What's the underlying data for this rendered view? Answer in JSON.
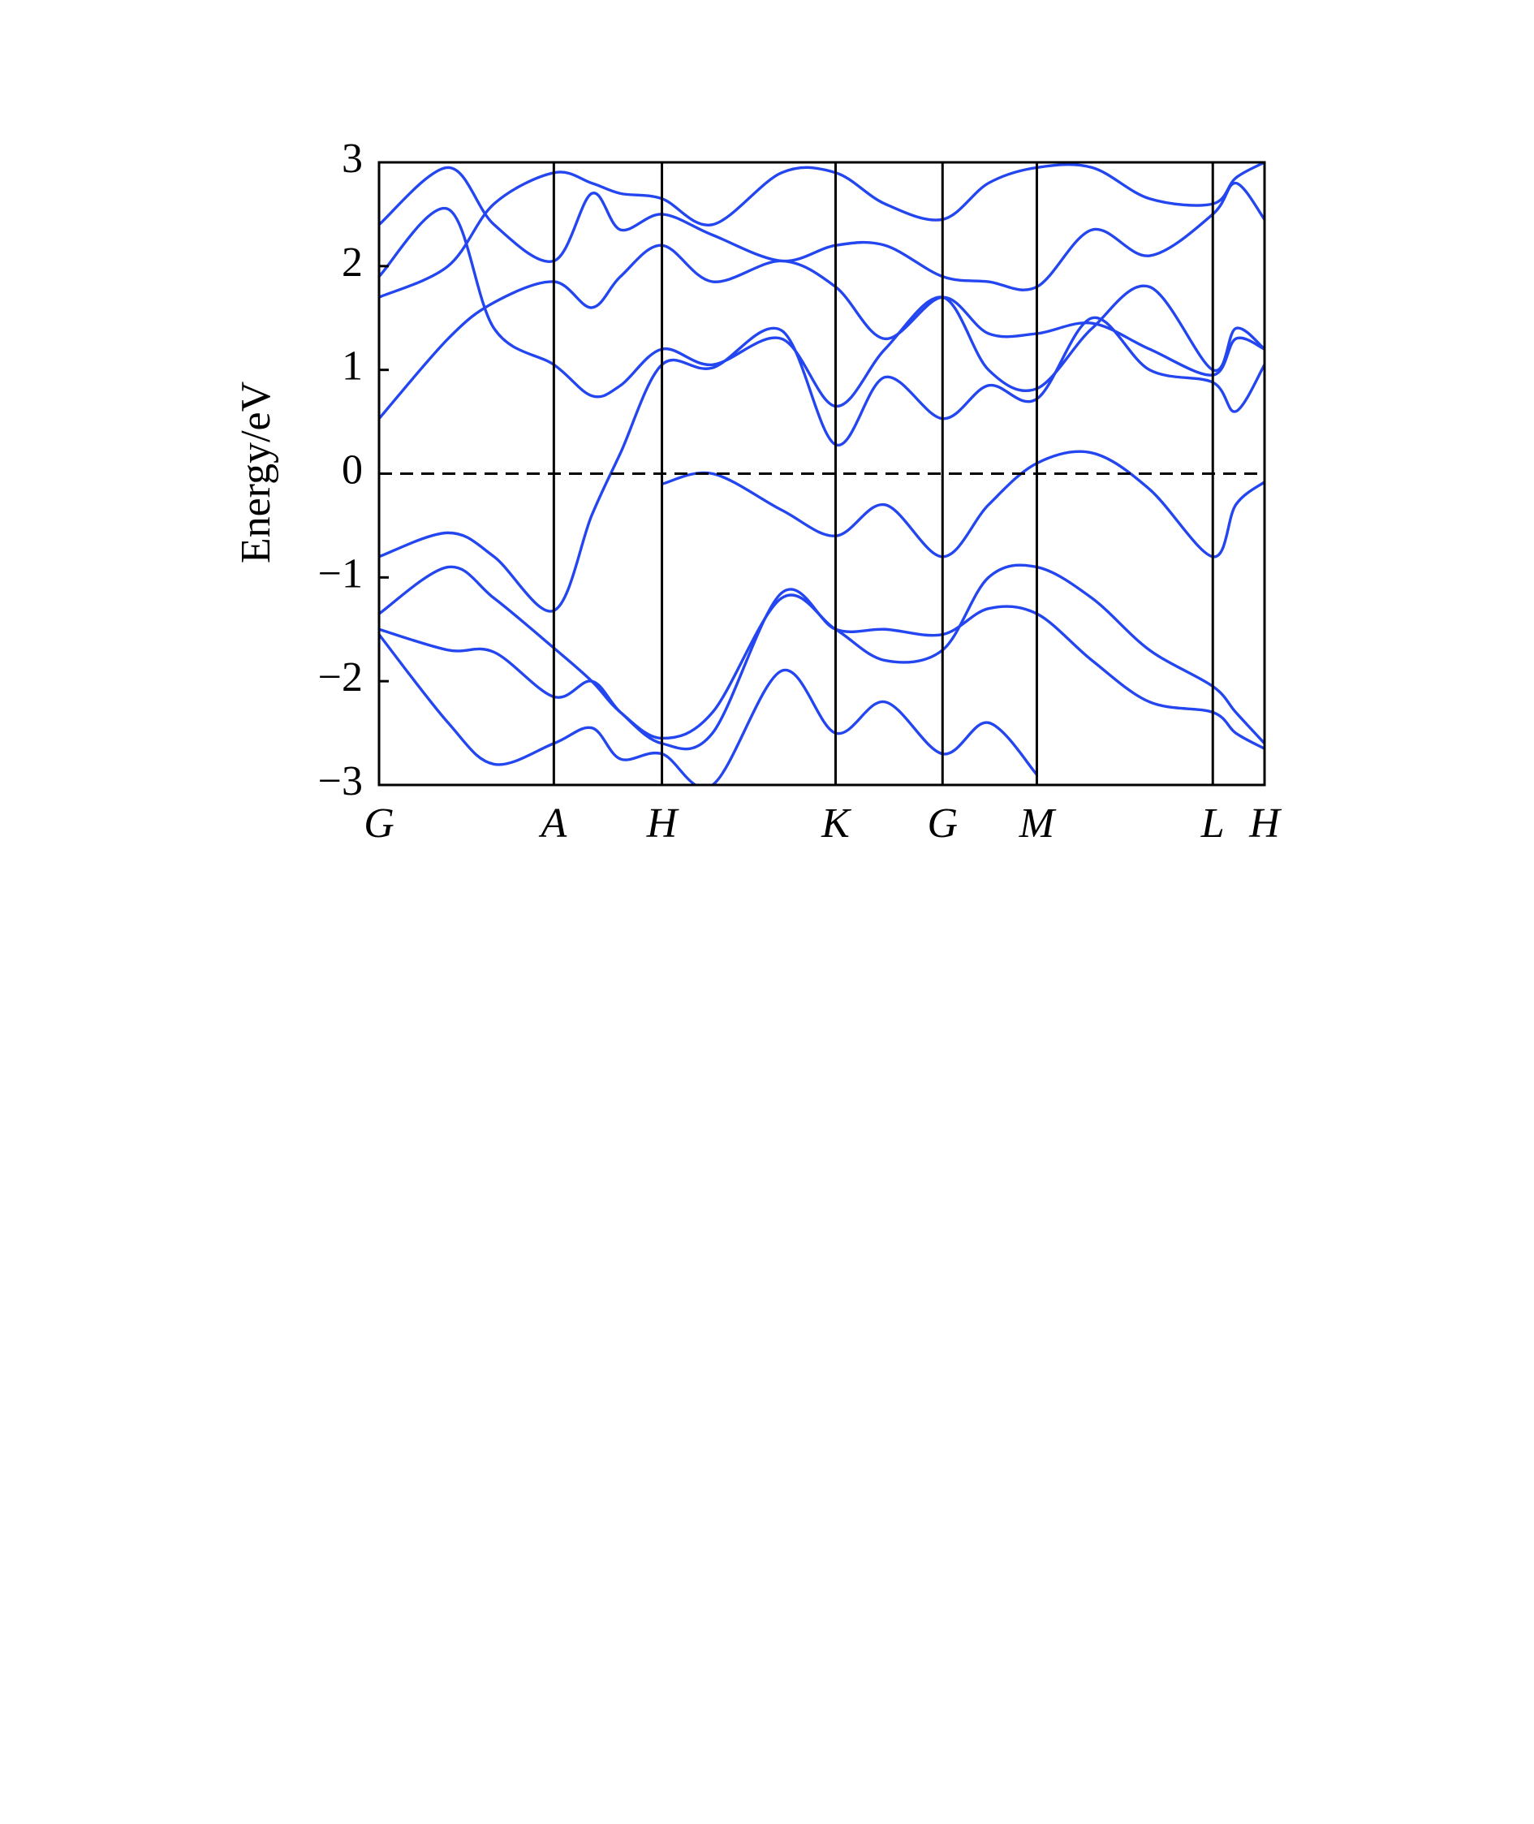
{
  "chart_data": {
    "type": "line",
    "y_label": "Energy/eV",
    "x": [
      0,
      0.6,
      1.0,
      1.52,
      1.85,
      2.1,
      2.46,
      2.9,
      3.5,
      3.97,
      4.4,
      4.9,
      5.3,
      5.72,
      6.2,
      6.7,
      7.25,
      7.45,
      7.7
    ],
    "xlim": [
      0,
      7.7
    ],
    "xticks": [
      {
        "value": 0,
        "label": "G"
      },
      {
        "value": 1.52,
        "label": "A"
      },
      {
        "value": 2.46,
        "label": "H"
      },
      {
        "value": 3.97,
        "label": "K"
      },
      {
        "value": 4.9,
        "label": "G"
      },
      {
        "value": 5.72,
        "label": "M"
      },
      {
        "value": 7.25,
        "label": "L"
      },
      {
        "value": 7.7,
        "label": "H"
      }
    ],
    "ylim": [
      -3,
      3
    ],
    "yticks": [
      {
        "value": -3,
        "label": "−3"
      },
      {
        "value": -2,
        "label": "−2"
      },
      {
        "value": -1,
        "label": "−1"
      },
      0,
      1,
      2,
      3
    ],
    "fermi_level": 0,
    "grid": true,
    "color": "#2346f0",
    "series": [
      {
        "values": [
          -0.8,
          -0.57,
          -0.8,
          -1.32,
          -0.4,
          0.2,
          1.05,
          1.02,
          1.38,
          0.28,
          0.93,
          0.53,
          0.85,
          0.72,
          1.5,
          1.0,
          0.88,
          0.6,
          1.05
        ]
      },
      {
        "values": [
          null,
          null,
          null,
          null,
          null,
          null,
          -0.1,
          0.0,
          -0.35,
          -0.6,
          -0.3,
          -0.8,
          -0.3,
          0.1,
          0.2,
          -0.15,
          -0.8,
          -0.3,
          -0.08
        ]
      },
      {
        "values": [
          -1.35,
          -0.9,
          -1.2,
          -1.68,
          -2.0,
          -2.3,
          -2.55,
          -2.3,
          -1.2,
          -1.5,
          -1.8,
          -1.7,
          -1.0,
          -0.9,
          -1.2,
          -1.7,
          -2.05,
          -2.3,
          -2.6
        ]
      },
      {
        "values": [
          -1.5,
          -1.7,
          -1.72,
          -2.15,
          -2.0,
          -2.3,
          -2.6,
          -2.5,
          -1.15,
          -1.5,
          -1.5,
          -1.55,
          -1.3,
          -1.35,
          -1.8,
          -2.2,
          -2.3,
          -2.5,
          -2.65
        ]
      },
      {
        "values": [
          -1.55,
          -2.4,
          -2.8,
          -2.6,
          -2.45,
          -2.75,
          -2.7,
          -3.0,
          -1.9,
          -2.5,
          -2.2,
          -2.7,
          -2.4,
          -2.9,
          null,
          null,
          null,
          null,
          null
        ]
      },
      {
        "values": [
          0.53,
          1.3,
          1.65,
          1.85,
          1.6,
          1.9,
          2.2,
          1.85,
          2.05,
          1.8,
          1.3,
          1.7,
          1.35,
          1.35,
          1.45,
          1.2,
          0.95,
          1.3,
          1.2
        ]
      },
      {
        "values": [
          1.9,
          2.55,
          1.4,
          1.05,
          0.75,
          0.85,
          1.2,
          1.05,
          1.3,
          0.65,
          1.2,
          1.7,
          1.0,
          0.82,
          1.4,
          1.8,
          1.0,
          1.4,
          1.2
        ]
      },
      {
        "values": [
          2.4,
          2.95,
          2.4,
          2.05,
          2.7,
          2.35,
          2.5,
          2.3,
          2.05,
          2.2,
          2.2,
          1.9,
          1.85,
          1.8,
          2.35,
          2.1,
          2.5,
          2.8,
          2.45
        ]
      },
      {
        "values": [
          1.7,
          2.0,
          2.6,
          2.9,
          2.8,
          2.7,
          2.65,
          2.4,
          2.9,
          2.9,
          2.6,
          2.45,
          2.8,
          2.95,
          2.95,
          2.65,
          2.6,
          2.85,
          3.0
        ]
      }
    ]
  }
}
